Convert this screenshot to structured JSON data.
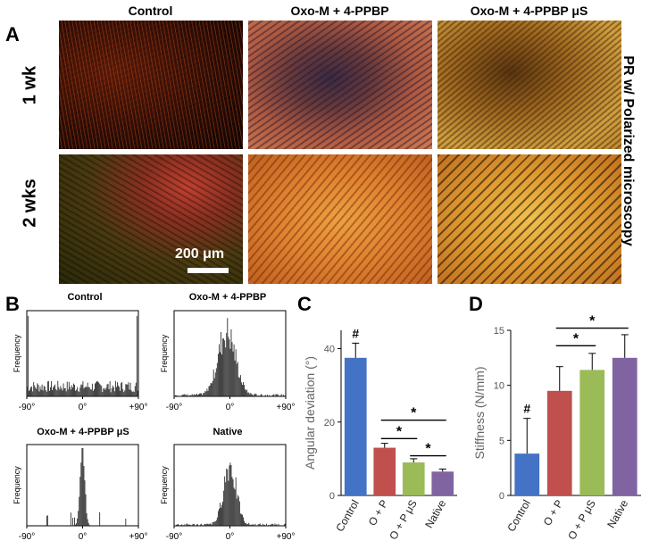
{
  "panels": {
    "A": {
      "letter": "A",
      "columns": [
        "Control",
        "Oxo-M + 4-PPBP",
        "Oxo-M + 4-PPBP μS"
      ],
      "rows": [
        "1 wk",
        "2 wks"
      ],
      "side_label": "PR w/ Polarized microscopy",
      "scale_bar": "200 μm"
    },
    "B": {
      "letter": "B"
    },
    "C": {
      "letter": "C"
    },
    "D": {
      "letter": "D"
    }
  },
  "chart_data": [
    {
      "id": "B1",
      "type": "histogram",
      "title": "Control",
      "ylabel": "Frequency",
      "xticks": [
        "-90°",
        "0°",
        "+90°"
      ],
      "xlim": [
        -90,
        90
      ],
      "distribution": "uniform-with-edge-peaks"
    },
    {
      "id": "B2",
      "type": "histogram",
      "title": "Oxo-M + 4-PPBP",
      "ylabel": "Frequency",
      "xticks": [
        "-90°",
        "0°",
        "+90°"
      ],
      "xlim": [
        -90,
        90
      ],
      "distribution": "peaked",
      "center": -5,
      "spread": 14
    },
    {
      "id": "B3",
      "type": "histogram",
      "title": "Oxo-M + 4-PPBP μS",
      "ylabel": "Frequency",
      "xticks": [
        "-90°",
        "0°",
        "+90°"
      ],
      "xlim": [
        -90,
        90
      ],
      "distribution": "sharp-peak",
      "center": 0,
      "spread": 4
    },
    {
      "id": "B4",
      "type": "histogram",
      "title": "Native",
      "ylabel": "Frequency",
      "xticks": [
        "-90°",
        "0°",
        "+90°"
      ],
      "xlim": [
        -90,
        90
      ],
      "distribution": "peaked",
      "center": 0,
      "spread": 10
    },
    {
      "id": "C",
      "type": "bar",
      "ylabel": "Angular deviation (°)",
      "categories": [
        "Control",
        "O + P",
        "O + P μS",
        "Native"
      ],
      "values": [
        37.5,
        13,
        9,
        6.5
      ],
      "errors": [
        4,
        1.2,
        1,
        0.7
      ],
      "colors": [
        "#4472c4",
        "#c0504d",
        "#9bbb59",
        "#8064a2"
      ],
      "ylim": [
        0,
        45
      ],
      "yticks": [
        0,
        20,
        40
      ],
      "annotations": [
        {
          "type": "hash",
          "bar": 0,
          "label": "#"
        },
        {
          "type": "bracket",
          "from": 1,
          "to": 3,
          "label": "*"
        },
        {
          "type": "bracket",
          "from": 1,
          "to": 2,
          "label": "*"
        },
        {
          "type": "bracket",
          "from": 2,
          "to": 3,
          "label": "*"
        }
      ]
    },
    {
      "id": "D",
      "type": "bar",
      "ylabel": "Stiffness (N/mm)",
      "categories": [
        "Control",
        "O + P",
        "O + P μS",
        "Native"
      ],
      "values": [
        3.8,
        9.5,
        11.4,
        12.5
      ],
      "errors": [
        3.2,
        2.2,
        1.5,
        2.1
      ],
      "colors": [
        "#4472c4",
        "#c0504d",
        "#9bbb59",
        "#8064a2"
      ],
      "ylim": [
        0,
        15
      ],
      "yticks": [
        0,
        5,
        10,
        15
      ],
      "annotations": [
        {
          "type": "hash",
          "bar": 0,
          "label": "#"
        },
        {
          "type": "bracket",
          "from": 1,
          "to": 3,
          "label": "*"
        },
        {
          "type": "bracket",
          "from": 1,
          "to": 2,
          "label": "*"
        }
      ]
    }
  ]
}
